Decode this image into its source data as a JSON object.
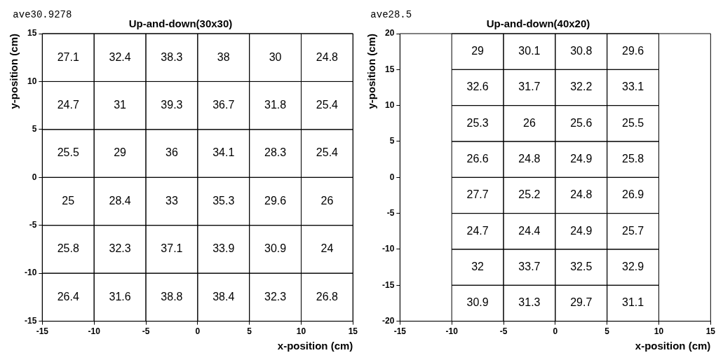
{
  "chart_data": [
    {
      "type": "heatmap",
      "title": "Up-and-down(30x30)",
      "xlabel": "x-position (cm)",
      "ylabel": "y-position (cm)",
      "annotations": [
        "ave30.9278"
      ],
      "data_labels": true,
      "xlim": [
        -15,
        15
      ],
      "xticks": [
        -15,
        -10,
        -5,
        0,
        5,
        10,
        15
      ],
      "ylim": [
        -15,
        15
      ],
      "yticks": [
        -15,
        -10,
        -5,
        0,
        5,
        10,
        15
      ],
      "cells": [
        [
          27.1,
          32.4,
          38.3,
          38,
          30,
          24.8
        ],
        [
          24.7,
          31,
          39.3,
          36.7,
          31.8,
          25.4
        ],
        [
          25.5,
          29,
          36,
          34.1,
          28.3,
          25.4
        ],
        [
          25,
          28.4,
          33,
          35.3,
          29.6,
          26
        ],
        [
          25.8,
          32.3,
          37.1,
          33.9,
          30.9,
          24
        ],
        [
          26.4,
          31.6,
          38.8,
          38.4,
          32.3,
          26.8
        ]
      ]
    },
    {
      "type": "heatmap",
      "title": "Up-and-down(40x20)",
      "xlabel": "x-position (cm)",
      "ylabel": "y-position (cm)",
      "annotations": [
        "ave28.5"
      ],
      "data_labels": true,
      "xlim": [
        -15,
        15
      ],
      "xticks": [
        -15,
        -10,
        -5,
        0,
        5,
        10,
        15
      ],
      "ylim": [
        -20,
        20
      ],
      "yticks": [
        -20,
        -15,
        -10,
        -5,
        0,
        5,
        10,
        15,
        20
      ],
      "cells": [
        [
          null,
          29,
          30.1,
          30.8,
          29.6,
          null
        ],
        [
          null,
          32.6,
          31.7,
          32.2,
          33.1,
          null
        ],
        [
          null,
          25.3,
          26,
          25.6,
          25.5,
          null
        ],
        [
          null,
          26.6,
          24.8,
          24.9,
          25.8,
          null
        ],
        [
          null,
          27.7,
          25.2,
          24.8,
          26.9,
          null
        ],
        [
          null,
          24.7,
          24.4,
          24.9,
          25.7,
          null
        ],
        [
          null,
          32,
          33.7,
          32.5,
          32.9,
          null
        ],
        [
          null,
          30.9,
          31.3,
          29.7,
          31.1,
          null
        ]
      ]
    }
  ]
}
